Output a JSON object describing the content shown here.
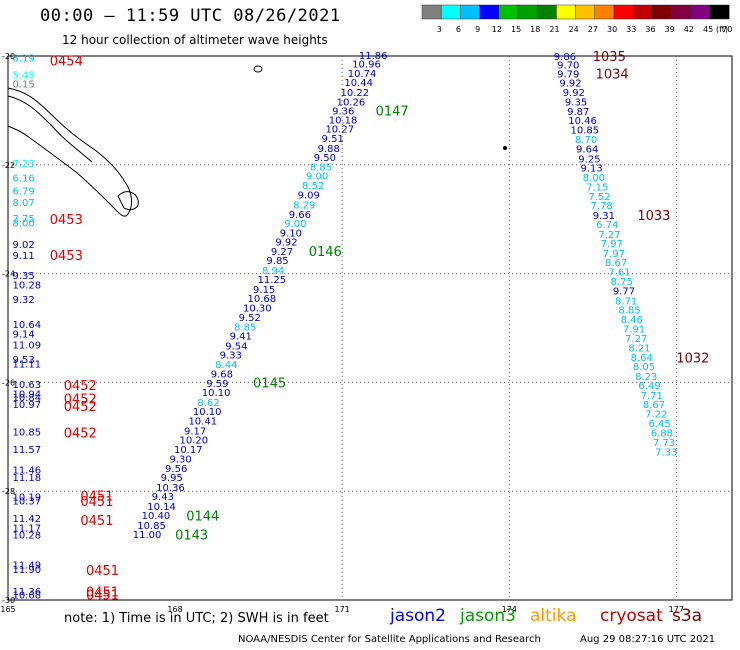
{
  "title": "00:00 – 11:59 UTC 08/26/2021",
  "subtitle": "12 hour collection of altimeter wave heights",
  "colorbar": {
    "labels": [
      "3",
      "6",
      "9",
      "12",
      "15",
      "18",
      "21",
      "24",
      "27",
      "30",
      "33",
      "36",
      "39",
      "42",
      "45",
      "70"
    ],
    "unit": "(ft)",
    "colors": [
      "#808080",
      "#00ffff",
      "#00bfff",
      "#0000ff",
      "#00c000",
      "#00a000",
      "#008000",
      "#ffff00",
      "#ffc000",
      "#ff8000",
      "#ff0000",
      "#c00000",
      "#800000",
      "#800040",
      "#800080",
      "#000000"
    ]
  },
  "axes": {
    "lat_labels": [
      "-20",
      "-22",
      "-24",
      "-26",
      "-28",
      "-30"
    ],
    "lon_labels": [
      "165",
      "168",
      "171",
      "174",
      "177"
    ],
    "lat_range": [
      -30,
      -20
    ],
    "lon_range": [
      165,
      178
    ]
  },
  "tracks": [
    {
      "satellite": "jason2",
      "points": [
        {
          "t": "8.19",
          "lat": -20.03,
          "lon": 165.08,
          "c": "#00bfff"
        },
        {
          "t": "5.45",
          "lat": -20.34,
          "lon": 165.08,
          "c": "#00ffff"
        },
        {
          "t": "0.15",
          "lat": -20.51,
          "lon": 165.08,
          "c": "#808080"
        },
        {
          "t": "7.23",
          "lat": -21.97,
          "lon": 165.08,
          "c": "#00ffff"
        },
        {
          "t": "6.16",
          "lat": -22.23,
          "lon": 165.08,
          "c": "#00bfff"
        },
        {
          "t": "6.79",
          "lat": -22.47,
          "lon": 165.08,
          "c": "#00bfff"
        },
        {
          "t": "8.07",
          "lat": -22.68,
          "lon": 165.08,
          "c": "#00bfff"
        },
        {
          "t": "7.75",
          "lat": -22.98,
          "lon": 165.08,
          "c": "#00bfff"
        },
        {
          "t": "8.00",
          "lat": -23.06,
          "lon": 165.08,
          "c": "#00bfff"
        },
        {
          "t": "9.02",
          "lat": -23.46,
          "lon": 165.08,
          "c": "#0000c0"
        },
        {
          "t": "9.11",
          "lat": -23.66,
          "lon": 165.08,
          "c": "#0000c0"
        },
        {
          "t": "9.35",
          "lat": -24.03,
          "lon": 165.08,
          "c": "#0000c0"
        },
        {
          "t": "10.28",
          "lat": -24.2,
          "lon": 165.08,
          "c": "#0000c0"
        },
        {
          "t": "9.32",
          "lat": -24.47,
          "lon": 165.08,
          "c": "#0000c0"
        },
        {
          "t": "10.64",
          "lat": -24.93,
          "lon": 165.08,
          "c": "#0000c0"
        },
        {
          "t": "9.14",
          "lat": -25.1,
          "lon": 165.08,
          "c": "#0000c0"
        },
        {
          "t": "11.09",
          "lat": -25.3,
          "lon": 165.08,
          "c": "#0000c0"
        },
        {
          "t": "9.53",
          "lat": -25.57,
          "lon": 165.08,
          "c": "#0000c0"
        },
        {
          "t": "11.11",
          "lat": -25.65,
          "lon": 165.08,
          "c": "#0000c0"
        },
        {
          "t": "10.63",
          "lat": -26.03,
          "lon": 165.08,
          "c": "#0000c0"
        },
        {
          "t": "10.94",
          "lat": -26.2,
          "lon": 165.08,
          "c": "#0000c0"
        },
        {
          "t": "10.84",
          "lat": -26.27,
          "lon": 165.08,
          "c": "#0000c0"
        },
        {
          "t": "10.97",
          "lat": -26.4,
          "lon": 165.08,
          "c": "#0000c0"
        },
        {
          "t": "10.85",
          "lat": -26.9,
          "lon": 165.08,
          "c": "#0000c0"
        },
        {
          "t": "11.57",
          "lat": -27.22,
          "lon": 165.08,
          "c": "#0000c0"
        },
        {
          "t": "11.46",
          "lat": -27.6,
          "lon": 165.08,
          "c": "#0000c0"
        },
        {
          "t": "11.18",
          "lat": -27.74,
          "lon": 165.08,
          "c": "#0000c0"
        },
        {
          "t": "10.19",
          "lat": -28.1,
          "lon": 165.08,
          "c": "#0000c0"
        },
        {
          "t": "10.37",
          "lat": -28.17,
          "lon": 165.08,
          "c": "#0000c0"
        },
        {
          "t": "11.42",
          "lat": -28.49,
          "lon": 165.08,
          "c": "#0000c0"
        },
        {
          "t": "11.17",
          "lat": -28.67,
          "lon": 165.08,
          "c": "#0000c0"
        },
        {
          "t": "10.28",
          "lat": -28.8,
          "lon": 165.08,
          "c": "#0000c0"
        },
        {
          "t": "11.49",
          "lat": -29.35,
          "lon": 165.08,
          "c": "#0000c0"
        },
        {
          "t": "11.90",
          "lat": -29.43,
          "lon": 165.08,
          "c": "#0000c0"
        },
        {
          "t": "11.36",
          "lat": -29.83,
          "lon": 165.08,
          "c": "#0000c0"
        },
        {
          "t": "10.68",
          "lat": -29.9,
          "lon": 165.08,
          "c": "#0000c0"
        }
      ],
      "times": [
        {
          "t": "0454",
          "lat": -20.08,
          "lon": 165.75
        },
        {
          "t": "0453",
          "lat": -23.0,
          "lon": 165.75
        },
        {
          "t": "0453",
          "lat": -23.66,
          "lon": 165.75
        },
        {
          "t": "0452",
          "lat": -26.05,
          "lon": 166.0
        },
        {
          "t": "0452",
          "lat": -26.3,
          "lon": 166.0
        },
        {
          "t": "0452",
          "lat": -26.43,
          "lon": 166.0
        },
        {
          "t": "0452",
          "lat": -26.92,
          "lon": 166.0
        },
        {
          "t": "0451",
          "lat": -28.08,
          "lon": 166.3
        },
        {
          "t": "0451",
          "lat": -28.18,
          "lon": 166.3
        },
        {
          "t": "0451",
          "lat": -28.53,
          "lon": 166.3
        },
        {
          "t": "0451",
          "lat": -29.45,
          "lon": 166.4
        },
        {
          "t": "0451",
          "lat": -29.84,
          "lon": 166.4
        },
        {
          "t": "0451",
          "lat": -29.9,
          "lon": 166.4
        }
      ]
    },
    {
      "satellite": "jason3",
      "points": [
        {
          "t": "11.86",
          "lat": -19.98,
          "lon": 171.3,
          "c": "#0000c0"
        },
        {
          "t": "10.96",
          "lat": -20.14,
          "lon": 171.18,
          "c": "#0000c0"
        },
        {
          "t": "10.74",
          "lat": -20.31,
          "lon": 171.1,
          "c": "#0000c0"
        },
        {
          "t": "10.44",
          "lat": -20.48,
          "lon": 171.04,
          "c": "#0000c0"
        },
        {
          "t": "10.22",
          "lat": -20.66,
          "lon": 170.97,
          "c": "#0000c0"
        },
        {
          "t": "10.26",
          "lat": -20.84,
          "lon": 170.9,
          "c": "#0000c0"
        },
        {
          "t": "9.36",
          "lat": -21.0,
          "lon": 170.82,
          "c": "#0000c0"
        },
        {
          "t": "10.18",
          "lat": -21.17,
          "lon": 170.76,
          "c": "#0000c0"
        },
        {
          "t": "10.27",
          "lat": -21.33,
          "lon": 170.7,
          "c": "#0000c0"
        },
        {
          "t": "9.51",
          "lat": -21.51,
          "lon": 170.63,
          "c": "#0000c0"
        },
        {
          "t": "9.88",
          "lat": -21.69,
          "lon": 170.56,
          "c": "#0000c0"
        },
        {
          "t": "9.50",
          "lat": -21.86,
          "lon": 170.49,
          "c": "#0000c0"
        },
        {
          "t": "8.85",
          "lat": -22.03,
          "lon": 170.42,
          "c": "#00bfff"
        },
        {
          "t": "9.00",
          "lat": -22.2,
          "lon": 170.35,
          "c": "#00bfff"
        },
        {
          "t": "8.52",
          "lat": -22.37,
          "lon": 170.28,
          "c": "#00bfff"
        },
        {
          "t": "9.09",
          "lat": -22.55,
          "lon": 170.2,
          "c": "#0000c0"
        },
        {
          "t": "8.29",
          "lat": -22.73,
          "lon": 170.12,
          "c": "#00bfff"
        },
        {
          "t": "9.66",
          "lat": -22.9,
          "lon": 170.04,
          "c": "#0000c0"
        },
        {
          "t": "9.00",
          "lat": -23.07,
          "lon": 169.96,
          "c": "#00bfff"
        },
        {
          "t": "9.10",
          "lat": -23.24,
          "lon": 169.88,
          "c": "#0000c0"
        },
        {
          "t": "9.92",
          "lat": -23.41,
          "lon": 169.8,
          "c": "#0000c0"
        },
        {
          "t": "9.27",
          "lat": -23.58,
          "lon": 169.72,
          "c": "#0000c0"
        },
        {
          "t": "9.85",
          "lat": -23.75,
          "lon": 169.64,
          "c": "#0000c0"
        },
        {
          "t": "8.94",
          "lat": -23.93,
          "lon": 169.56,
          "c": "#00bfff"
        },
        {
          "t": "11.25",
          "lat": -24.1,
          "lon": 169.48,
          "c": "#0000c0"
        },
        {
          "t": "9.15",
          "lat": -24.28,
          "lon": 169.4,
          "c": "#0000c0"
        },
        {
          "t": "10.68",
          "lat": -24.45,
          "lon": 169.3,
          "c": "#0000c0"
        },
        {
          "t": "10.30",
          "lat": -24.62,
          "lon": 169.22,
          "c": "#0000c0"
        },
        {
          "t": "9.52",
          "lat": -24.8,
          "lon": 169.14,
          "c": "#0000c0"
        },
        {
          "t": "8.85",
          "lat": -24.97,
          "lon": 169.06,
          "c": "#00bfff"
        },
        {
          "t": "9.41",
          "lat": -25.14,
          "lon": 168.98,
          "c": "#0000c0"
        },
        {
          "t": "9.54",
          "lat": -25.32,
          "lon": 168.9,
          "c": "#0000c0"
        },
        {
          "t": "9.33",
          "lat": -25.49,
          "lon": 168.8,
          "c": "#0000c0"
        },
        {
          "t": "8.44",
          "lat": -25.66,
          "lon": 168.72,
          "c": "#00bfff"
        },
        {
          "t": "9.68",
          "lat": -25.84,
          "lon": 168.64,
          "c": "#0000c0"
        },
        {
          "t": "9.59",
          "lat": -26.01,
          "lon": 168.56,
          "c": "#0000c0"
        },
        {
          "t": "10.10",
          "lat": -26.18,
          "lon": 168.48,
          "c": "#0000c0"
        },
        {
          "t": "8.62",
          "lat": -26.36,
          "lon": 168.4,
          "c": "#00bfff"
        },
        {
          "t": "10.10",
          "lat": -26.53,
          "lon": 168.32,
          "c": "#0000c0"
        },
        {
          "t": "10.41",
          "lat": -26.7,
          "lon": 168.24,
          "c": "#0000c0"
        },
        {
          "t": "9.17",
          "lat": -26.88,
          "lon": 168.16,
          "c": "#0000c0"
        },
        {
          "t": "10.20",
          "lat": -27.05,
          "lon": 168.08,
          "c": "#0000c0"
        },
        {
          "t": "10.17",
          "lat": -27.22,
          "lon": 167.98,
          "c": "#0000c0"
        },
        {
          "t": "9.30",
          "lat": -27.4,
          "lon": 167.9,
          "c": "#0000c0"
        },
        {
          "t": "9.56",
          "lat": -27.57,
          "lon": 167.82,
          "c": "#0000c0"
        },
        {
          "t": "9.95",
          "lat": -27.74,
          "lon": 167.74,
          "c": "#0000c0"
        },
        {
          "t": "10.36",
          "lat": -27.92,
          "lon": 167.66,
          "c": "#0000c0"
        },
        {
          "t": "9.43",
          "lat": -28.09,
          "lon": 167.58,
          "c": "#0000c0"
        },
        {
          "t": "10.14",
          "lat": -28.27,
          "lon": 167.5,
          "c": "#0000c0"
        },
        {
          "t": "10.40",
          "lat": -28.44,
          "lon": 167.4,
          "c": "#0000c0"
        },
        {
          "t": "10.85",
          "lat": -28.62,
          "lon": 167.32,
          "c": "#0000c0"
        },
        {
          "t": "11.00",
          "lat": -28.79,
          "lon": 167.24,
          "c": "#0000c0"
        }
      ],
      "times": [
        {
          "t": "0147",
          "lat": -21.0,
          "lon": 171.6
        },
        {
          "t": "0146",
          "lat": -23.58,
          "lon": 170.4
        },
        {
          "t": "0145",
          "lat": -26.0,
          "lon": 169.4
        },
        {
          "t": "0144",
          "lat": -28.45,
          "lon": 168.2
        },
        {
          "t": "0143",
          "lat": -28.8,
          "lon": 168.0
        }
      ]
    },
    {
      "satellite": "cryosat",
      "points": [
        {
          "t": "9.86",
          "lat": -20.0,
          "lon": 174.8,
          "c": "#0000c0"
        },
        {
          "t": "9.70",
          "lat": -20.16,
          "lon": 174.86,
          "c": "#0000c0"
        },
        {
          "t": "9.79",
          "lat": -20.32,
          "lon": 174.86,
          "c": "#0000c0"
        },
        {
          "t": "9.92",
          "lat": -20.49,
          "lon": 174.9,
          "c": "#0000c0"
        },
        {
          "t": "9.92",
          "lat": -20.66,
          "lon": 174.96,
          "c": "#0000c0"
        },
        {
          "t": "9.35",
          "lat": -20.84,
          "lon": 175.0,
          "c": "#0000c0"
        },
        {
          "t": "9.87",
          "lat": -21.01,
          "lon": 175.04,
          "c": "#0000c0"
        },
        {
          "t": "10.46",
          "lat": -21.18,
          "lon": 175.06,
          "c": "#0000c0"
        },
        {
          "t": "10.85",
          "lat": -21.35,
          "lon": 175.1,
          "c": "#0000c0"
        },
        {
          "t": "8.70",
          "lat": -21.53,
          "lon": 175.18,
          "c": "#00bfff"
        },
        {
          "t": "9.64",
          "lat": -21.7,
          "lon": 175.2,
          "c": "#0000c0"
        },
        {
          "t": "9.25",
          "lat": -21.88,
          "lon": 175.24,
          "c": "#0000c0"
        },
        {
          "t": "9.13",
          "lat": -22.05,
          "lon": 175.28,
          "c": "#0000c0"
        },
        {
          "t": "8.00",
          "lat": -22.22,
          "lon": 175.32,
          "c": "#00bfff"
        },
        {
          "t": "7.15",
          "lat": -22.4,
          "lon": 175.38,
          "c": "#00bfff"
        },
        {
          "t": "7.52",
          "lat": -22.57,
          "lon": 175.42,
          "c": "#00bfff"
        },
        {
          "t": "7.78",
          "lat": -22.74,
          "lon": 175.46,
          "c": "#00bfff"
        },
        {
          "t": "9.31",
          "lat": -22.92,
          "lon": 175.5,
          "c": "#0000c0"
        },
        {
          "t": "6.74",
          "lat": -23.09,
          "lon": 175.56,
          "c": "#00bfff"
        },
        {
          "t": "7.27",
          "lat": -23.27,
          "lon": 175.6,
          "c": "#00bfff"
        },
        {
          "t": "7.97",
          "lat": -23.44,
          "lon": 175.64,
          "c": "#00bfff"
        },
        {
          "t": "7.97",
          "lat": -23.62,
          "lon": 175.68,
          "c": "#00bfff"
        },
        {
          "t": "8.67",
          "lat": -23.79,
          "lon": 175.72,
          "c": "#00bfff"
        },
        {
          "t": "7.61",
          "lat": -23.96,
          "lon": 175.78,
          "c": "#00bfff"
        },
        {
          "t": "8.75",
          "lat": -24.14,
          "lon": 175.82,
          "c": "#00bfff"
        },
        {
          "t": "9.77",
          "lat": -24.31,
          "lon": 175.86,
          "c": "#0000c0"
        },
        {
          "t": "8.71",
          "lat": -24.49,
          "lon": 175.9,
          "c": "#00bfff"
        },
        {
          "t": "8.85",
          "lat": -24.66,
          "lon": 175.96,
          "c": "#00bfff"
        },
        {
          "t": "8.46",
          "lat": -24.83,
          "lon": 176.0,
          "c": "#00bfff"
        },
        {
          "t": "7.91",
          "lat": -25.01,
          "lon": 176.04,
          "c": "#00bfff"
        },
        {
          "t": "7.27",
          "lat": -25.18,
          "lon": 176.08,
          "c": "#00bfff"
        },
        {
          "t": "8.21",
          "lat": -25.36,
          "lon": 176.14,
          "c": "#00bfff"
        },
        {
          "t": "8.64",
          "lat": -25.53,
          "lon": 176.18,
          "c": "#00bfff"
        },
        {
          "t": "8.05",
          "lat": -25.7,
          "lon": 176.22,
          "c": "#00bfff"
        },
        {
          "t": "8.23",
          "lat": -25.88,
          "lon": 176.26,
          "c": "#00bfff"
        },
        {
          "t": "6.49",
          "lat": -26.05,
          "lon": 176.32,
          "c": "#00bfff"
        },
        {
          "t": "7.71",
          "lat": -26.23,
          "lon": 176.36,
          "c": "#00bfff"
        },
        {
          "t": "8.67",
          "lat": -26.4,
          "lon": 176.4,
          "c": "#00bfff"
        },
        {
          "t": "7.22",
          "lat": -26.57,
          "lon": 176.44,
          "c": "#00bfff"
        },
        {
          "t": "6.45",
          "lat": -26.75,
          "lon": 176.5,
          "c": "#00bfff"
        },
        {
          "t": "6.88",
          "lat": -26.92,
          "lon": 176.54,
          "c": "#00bfff"
        },
        {
          "t": "7.73",
          "lat": -27.1,
          "lon": 176.58,
          "c": "#00bfff"
        },
        {
          "t": "7.33",
          "lat": -27.27,
          "lon": 176.62,
          "c": "#00bfff"
        }
      ],
      "times": [
        {
          "t": "1035",
          "lat": -20.0,
          "lon": 175.5
        },
        {
          "t": "1034",
          "lat": -20.32,
          "lon": 175.55
        },
        {
          "t": "1033",
          "lat": -22.92,
          "lon": 176.3
        },
        {
          "t": "1032",
          "lat": -25.54,
          "lon": 177.0
        }
      ]
    }
  ],
  "note": "note:  1) Time is in UTC;  2) SWH is in feet",
  "legend": [
    {
      "label": "jason2",
      "color": "#0000ff"
    },
    {
      "label": "jason3",
      "color": "#00a000"
    },
    {
      "label": "altika",
      "color": "#ff9900"
    },
    {
      "label": "cryosat",
      "color": "#c00000"
    },
    {
      "label": "s3a",
      "color": "#800000"
    }
  ],
  "footer": "NOAA/NESDIS Center for Satellite Applications and Research",
  "stamp": "Aug 29 08:27:16 UTC 2021"
}
